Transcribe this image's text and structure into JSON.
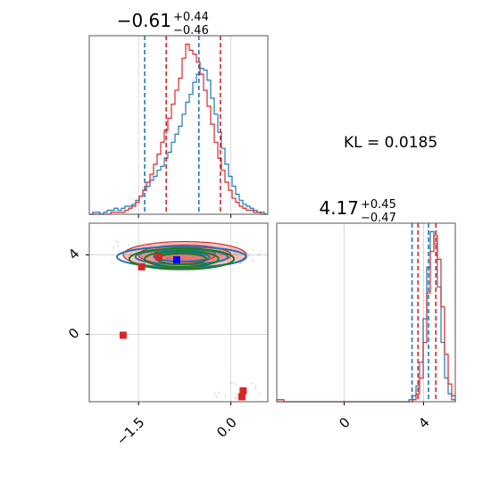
{
  "kl_text": "KL = 0.0185",
  "colors": {
    "blue": "#1f77b4",
    "red": "#d62728",
    "green": "#1b7e1b",
    "grid": "#cfcfcf"
  },
  "chart_data": [
    {
      "type": "histogram",
      "panel": "top-left",
      "title": {
        "base": "−0.61",
        "sup": "+0.44",
        "sub": "−0.46"
      },
      "parameter_median": -0.61,
      "xlim": [
        -2.3,
        0.6
      ],
      "xticks": [
        -1.5,
        0.0
      ],
      "xticklabels": [
        "−1.5",
        "0.0"
      ],
      "series": [
        {
          "color": "#1f77b4",
          "edges": [
            -2.3,
            0.6
          ],
          "counts": [
            0,
            1,
            1,
            0,
            1,
            2,
            2,
            3,
            2,
            3,
            4,
            4,
            5,
            7,
            9,
            12,
            14,
            17,
            19,
            22,
            24,
            28,
            31,
            36,
            40,
            44,
            50,
            56,
            60,
            66,
            70,
            73,
            72,
            67,
            58,
            50,
            41,
            33,
            25,
            19,
            14,
            10,
            7,
            5,
            4,
            3,
            2,
            1,
            1,
            0
          ],
          "quantile_lines": [
            -1.4,
            -0.52
          ]
        },
        {
          "color": "#d62728",
          "edges": [
            -2.3,
            0.6
          ],
          "counts": [
            0,
            0,
            0,
            0,
            0,
            0,
            1,
            1,
            1,
            1,
            2,
            3,
            4,
            6,
            9,
            12,
            16,
            20,
            25,
            30,
            36,
            42,
            48,
            55,
            62,
            68,
            78,
            85,
            82,
            80,
            76,
            70,
            62,
            54,
            45,
            36,
            28,
            22,
            16,
            12,
            8,
            6,
            4,
            3,
            2,
            2,
            1,
            1,
            0,
            0
          ],
          "quantile_lines": [
            -1.05,
            -0.17
          ]
        }
      ]
    },
    {
      "type": "histogram",
      "panel": "bottom-right",
      "title": {
        "base": "4.17",
        "sup": "+0.45",
        "sub": "−0.47"
      },
      "parameter_median": 4.17,
      "xlim": [
        -3.4,
        5.6
      ],
      "xticks": [
        0,
        4
      ],
      "xticklabels": [
        "0",
        "4"
      ],
      "series": [
        {
          "color": "#1f77b4",
          "edges": [
            -3.4,
            5.6
          ],
          "counts": [
            0,
            0,
            0,
            0,
            0,
            0,
            0,
            0,
            0,
            0,
            0,
            0,
            0,
            0,
            0,
            0,
            0,
            0,
            0,
            0,
            0,
            0,
            0,
            0,
            0,
            0,
            0,
            0,
            0,
            0,
            0,
            0,
            0,
            0,
            0,
            0,
            0,
            1,
            3,
            8,
            20,
            42,
            68,
            86,
            80,
            58,
            30,
            12,
            4,
            1
          ],
          "quantile_lines": [
            3.42,
            4.25
          ]
        },
        {
          "color": "#d62728",
          "edges": [
            -3.4,
            5.6
          ],
          "counts": [
            1,
            1,
            0,
            0,
            0,
            0,
            0,
            0,
            0,
            0,
            0,
            0,
            0,
            0,
            0,
            0,
            0,
            0,
            0,
            0,
            0,
            0,
            0,
            0,
            0,
            0,
            0,
            0,
            0,
            0,
            0,
            0,
            0,
            0,
            0,
            0,
            0,
            0,
            1,
            4,
            12,
            30,
            55,
            76,
            84,
            72,
            48,
            24,
            9,
            3
          ],
          "quantile_lines": [
            3.72,
            4.62
          ]
        }
      ]
    },
    {
      "type": "scatter",
      "panel": "bottom-left",
      "xlim": [
        -2.3,
        0.6
      ],
      "ylim": [
        -3.4,
        5.6
      ],
      "xticks": [
        -1.5,
        0.0
      ],
      "yticks": [
        0,
        4
      ],
      "xticklabels": [
        "−1.5",
        "0.0"
      ],
      "yticklabels": [
        "0",
        "4"
      ],
      "contours": [
        {
          "color": "#d62728",
          "fill": true,
          "cx": -0.75,
          "cy": 4.0,
          "levels": [
            [
              0.5,
              0.75
            ],
            [
              0.75,
              1.0
            ],
            [
              1.0,
              1.35
            ]
          ]
        },
        {
          "color": "#1f77b4",
          "fill": false,
          "cx": -0.8,
          "cy": 3.9,
          "levels": [
            [
              0.45,
              0.45
            ],
            [
              0.75,
              0.75
            ],
            [
              1.05,
              1.05
            ]
          ]
        },
        {
          "color": "#1b7e1b",
          "fill": false,
          "cx": -0.8,
          "cy": 3.8,
          "levels": [
            [
              0.4,
              0.55
            ],
            [
              0.6,
              0.8
            ],
            [
              0.85,
              1.05
            ]
          ]
        }
      ],
      "markers": [
        {
          "x": -1.45,
          "y": 3.4,
          "color": "#d62728",
          "label": ""
        },
        {
          "x": -1.17,
          "y": 3.9,
          "color": "#d62728",
          "label": ""
        },
        {
          "x": -0.88,
          "y": 3.75,
          "color": "#0000ff",
          "label": ""
        },
        {
          "x": -1.75,
          "y": -0.05,
          "color": "#d62728",
          "label": ""
        },
        {
          "x": 0.2,
          "y": -2.85,
          "color": "#d62728",
          "label": ""
        },
        {
          "x": 0.18,
          "y": -3.15,
          "color": "#d62728",
          "label": ""
        }
      ]
    }
  ]
}
